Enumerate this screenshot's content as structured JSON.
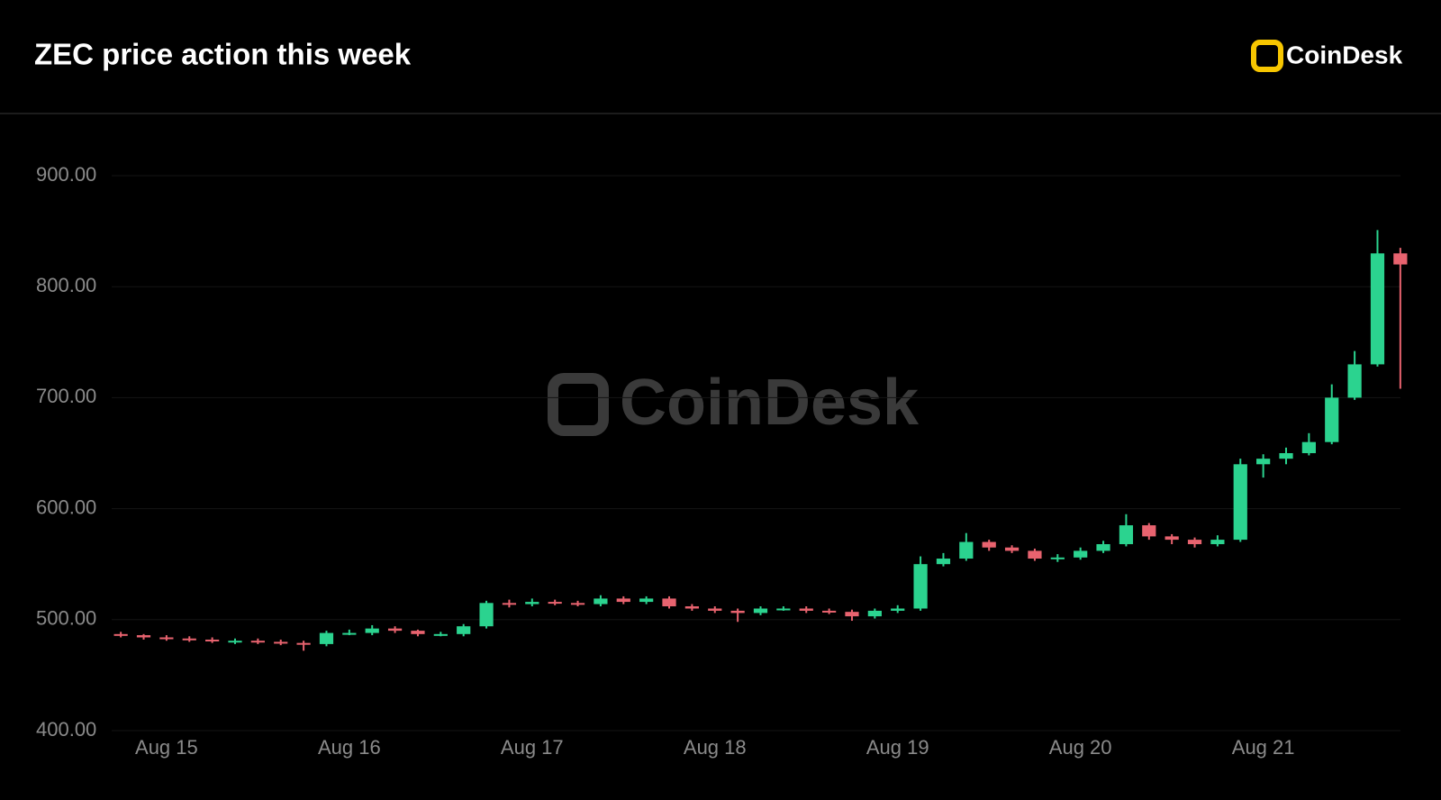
{
  "chart_data": {
    "type": "candlestick",
    "title": "ZEC price action this week",
    "logo": "CoinDesk",
    "watermark": "CoinDesk",
    "up_color": "#2bd38f",
    "down_color": "#e8636f",
    "grid": true,
    "x": [
      14.75,
      14.875,
      15.0,
      15.125,
      15.25,
      15.375,
      15.5,
      15.625,
      15.75,
      15.875,
      16.0,
      16.125,
      16.25,
      16.375,
      16.5,
      16.625,
      16.75,
      16.875,
      17.0,
      17.125,
      17.25,
      17.375,
      17.5,
      17.625,
      17.75,
      17.875,
      18.0,
      18.125,
      18.25,
      18.375,
      18.5,
      18.625,
      18.75,
      18.875,
      19.0,
      19.125,
      19.25,
      19.375,
      19.5,
      19.625,
      19.75,
      19.875,
      20.0,
      20.125,
      20.25,
      20.375,
      20.5,
      20.625,
      20.75,
      20.875,
      21.0,
      21.125,
      21.25,
      21.375,
      21.5,
      21.625,
      21.75
    ],
    "open": [
      487,
      486,
      484,
      483,
      482,
      481,
      481,
      480,
      479,
      478,
      488,
      488,
      492,
      490,
      487,
      487,
      494,
      515,
      514,
      516,
      515,
      514,
      519,
      516,
      519,
      512,
      510,
      508,
      506,
      510,
      510,
      508,
      507,
      503,
      508,
      510,
      550,
      555,
      570,
      565,
      562,
      555,
      556,
      562,
      568,
      585,
      575,
      572,
      568,
      572,
      640,
      645,
      650,
      660,
      700,
      730,
      830
    ],
    "high": [
      489,
      487,
      486,
      485,
      484,
      483,
      483,
      482,
      481,
      490,
      491,
      495,
      494,
      491,
      489,
      496,
      517,
      518,
      519,
      518,
      517,
      522,
      521,
      521,
      521,
      514,
      512,
      510,
      512,
      512,
      512,
      510,
      509,
      510,
      513,
      557,
      560,
      578,
      572,
      567,
      564,
      559,
      565,
      571,
      595,
      587,
      577,
      574,
      576,
      645,
      649,
      655,
      668,
      712,
      742,
      851,
      835
    ],
    "low": [
      484,
      482,
      481,
      480,
      479,
      478,
      478,
      477,
      472,
      476,
      486,
      486,
      488,
      485,
      485,
      485,
      492,
      511,
      512,
      513,
      512,
      512,
      514,
      514,
      510,
      508,
      506,
      498,
      504,
      508,
      506,
      505,
      499,
      501,
      506,
      508,
      548,
      553,
      562,
      560,
      553,
      552,
      554,
      560,
      566,
      572,
      568,
      565,
      566,
      570,
      628,
      640,
      648,
      658,
      698,
      728,
      708
    ],
    "close": [
      486,
      484,
      483,
      482,
      481,
      481,
      480,
      479,
      478,
      488,
      488,
      492,
      490,
      487,
      487,
      494,
      515,
      514,
      516,
      515,
      514,
      519,
      516,
      519,
      512,
      510,
      508,
      506,
      510,
      510,
      508,
      507,
      503,
      508,
      510,
      550,
      555,
      570,
      565,
      562,
      555,
      556,
      562,
      568,
      585,
      575,
      572,
      568,
      572,
      640,
      645,
      650,
      660,
      700,
      730,
      830,
      820
    ],
    "xlim": [
      14.7,
      21.8
    ],
    "xticks": [
      {
        "value": 15,
        "label": "Aug 15"
      },
      {
        "value": 16,
        "label": "Aug 16"
      },
      {
        "value": 17,
        "label": "Aug 17"
      },
      {
        "value": 18,
        "label": "Aug 18"
      },
      {
        "value": 19,
        "label": "Aug 19"
      },
      {
        "value": 20,
        "label": "Aug 20"
      },
      {
        "value": 21,
        "label": "Aug 21"
      }
    ],
    "ylim": [
      400,
      900
    ],
    "yticks": [
      {
        "value": 400,
        "label": "400.00"
      },
      {
        "value": 500,
        "label": "500.00"
      },
      {
        "value": 600,
        "label": "600.00"
      },
      {
        "value": 700,
        "label": "700.00"
      },
      {
        "value": 800,
        "label": "800.00"
      },
      {
        "value": 900,
        "label": "900.00"
      }
    ]
  }
}
